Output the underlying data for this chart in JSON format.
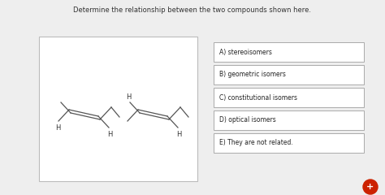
{
  "title": "Determine the relationship between the two compounds shown here.",
  "title_fontsize": 6.0,
  "title_color": "#333333",
  "bg_color": "#eeeeee",
  "box_color": "#ffffff",
  "box_edge_color": "#bbbbbb",
  "answer_options": [
    "A) stereoisomers",
    "B) geometric isomers",
    "C) constitutional isomers",
    "D) optical isomers",
    "E) They are not related."
  ],
  "answer_fontsize": 5.5,
  "button_color": "#cc2200",
  "button_plus": "+",
  "mol_line_color": "#555555",
  "mol_lw": 0.9
}
